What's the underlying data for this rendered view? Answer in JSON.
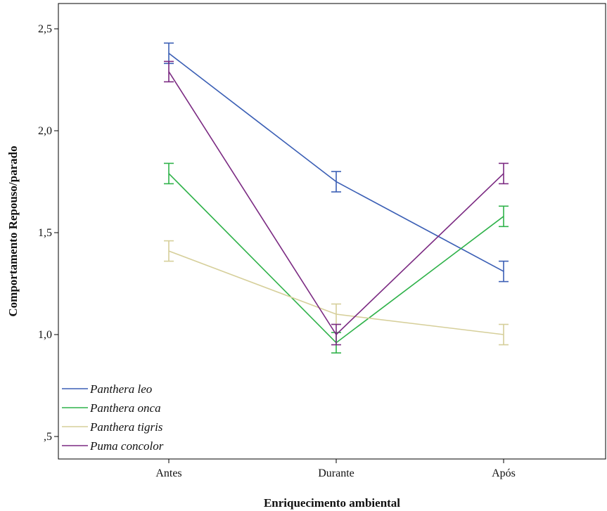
{
  "chart_data": {
    "type": "line",
    "title": "",
    "xlabel": "Enriquecimento ambiental",
    "ylabel": "Comportamento Repouso/parado",
    "categories": [
      "Antes",
      "Durante",
      "Após"
    ],
    "ylim": [
      0.4,
      2.6
    ],
    "yticks": [
      0.5,
      1.0,
      1.5,
      2.0,
      2.5
    ],
    "ytick_labels": [
      ",5",
      "1,0",
      "1,5",
      "2,0",
      "2,5"
    ],
    "error_bars": true,
    "grid": false,
    "legend_position": "bottom-left",
    "series": [
      {
        "name": "Panthera leo",
        "color": "#3b5fb5",
        "values": [
          2.38,
          1.75,
          1.31
        ],
        "error_low": [
          2.33,
          1.7,
          1.26
        ],
        "error_high": [
          2.43,
          1.8,
          1.36
        ]
      },
      {
        "name": "Panthera onca",
        "color": "#2fb24a",
        "values": [
          1.79,
          0.96,
          1.58
        ],
        "error_low": [
          1.74,
          0.91,
          1.53
        ],
        "error_high": [
          1.84,
          1.01,
          1.63
        ]
      },
      {
        "name": "Panthera tigris",
        "color": "#d6cf9a",
        "values": [
          1.41,
          1.1,
          1.0
        ],
        "error_low": [
          1.36,
          1.05,
          0.95
        ],
        "error_high": [
          1.46,
          1.15,
          1.05
        ]
      },
      {
        "name": "Puma concolor",
        "color": "#7b2a82",
        "values": [
          2.29,
          1.0,
          1.79
        ],
        "error_low": [
          2.24,
          0.95,
          1.74
        ],
        "error_high": [
          2.34,
          1.05,
          1.84
        ]
      }
    ]
  }
}
